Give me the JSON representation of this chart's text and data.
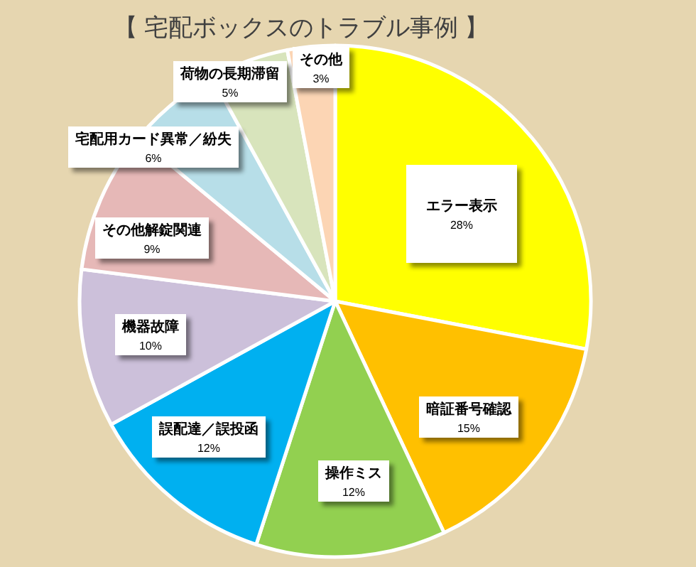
{
  "chart_data": {
    "type": "pie",
    "title": "【 宅配ボックスのトラブル事例 】",
    "categories": [
      "エラー表示",
      "暗証番号確認",
      "操作ミス",
      "誤配達／誤投函",
      "機器故障",
      "その他解錠関連",
      "宅配用カード異常／紛失",
      "荷物の長期滞留",
      "その他"
    ],
    "values": [
      28,
      15,
      12,
      12,
      10,
      9,
      6,
      5,
      3
    ],
    "colors": [
      "#ffff00",
      "#ffc000",
      "#92d050",
      "#00b0f0",
      "#ccc0da",
      "#e6b8b7",
      "#b7dee8",
      "#d8e4bc",
      "#fcd5b4"
    ],
    "value_labels": [
      "28%",
      "15%",
      "12%",
      "12%",
      "10%",
      "9%",
      "6%",
      "5%",
      "3%"
    ]
  }
}
